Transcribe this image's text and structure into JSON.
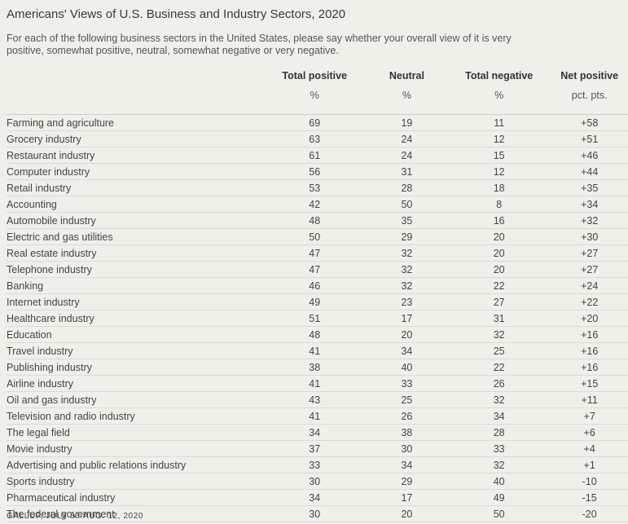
{
  "title": "Americans' Views of U.S. Business and Industry Sectors, 2020",
  "subtitle": "For each of the following business sectors in the United States, please say whether your overall view of it is very positive, somewhat positive, neutral, somewhat negative or very negative.",
  "footer": "GALLUP, JULY 30-AUG. 12, 2020",
  "chart_data": {
    "type": "table",
    "columns": [
      "Total positive",
      "Neutral",
      "Total negative",
      "Net positive"
    ],
    "units": [
      "%",
      "%",
      "%",
      "pct. pts."
    ],
    "rows": [
      {
        "label": "Farming and agriculture",
        "values": [
          "69",
          "19",
          "11",
          "+58"
        ]
      },
      {
        "label": "Grocery industry",
        "values": [
          "63",
          "24",
          "12",
          "+51"
        ]
      },
      {
        "label": "Restaurant industry",
        "values": [
          "61",
          "24",
          "15",
          "+46"
        ]
      },
      {
        "label": "Computer industry",
        "values": [
          "56",
          "31",
          "12",
          "+44"
        ]
      },
      {
        "label": "Retail industry",
        "values": [
          "53",
          "28",
          "18",
          "+35"
        ]
      },
      {
        "label": "Accounting",
        "values": [
          "42",
          "50",
          "8",
          "+34"
        ]
      },
      {
        "label": "Automobile industry",
        "values": [
          "48",
          "35",
          "16",
          "+32"
        ]
      },
      {
        "label": "Electric and gas utilities",
        "values": [
          "50",
          "29",
          "20",
          "+30"
        ]
      },
      {
        "label": "Real estate industry",
        "values": [
          "47",
          "32",
          "20",
          "+27"
        ]
      },
      {
        "label": "Telephone industry",
        "values": [
          "47",
          "32",
          "20",
          "+27"
        ]
      },
      {
        "label": "Banking",
        "values": [
          "46",
          "32",
          "22",
          "+24"
        ]
      },
      {
        "label": "Internet industry",
        "values": [
          "49",
          "23",
          "27",
          "+22"
        ]
      },
      {
        "label": "Healthcare industry",
        "values": [
          "51",
          "17",
          "31",
          "+20"
        ]
      },
      {
        "label": "Education",
        "values": [
          "48",
          "20",
          "32",
          "+16"
        ]
      },
      {
        "label": "Travel industry",
        "values": [
          "41",
          "34",
          "25",
          "+16"
        ]
      },
      {
        "label": "Publishing industry",
        "values": [
          "38",
          "40",
          "22",
          "+16"
        ]
      },
      {
        "label": "Airline industry",
        "values": [
          "41",
          "33",
          "26",
          "+15"
        ]
      },
      {
        "label": "Oil and gas industry",
        "values": [
          "43",
          "25",
          "32",
          "+11"
        ]
      },
      {
        "label": "Television and radio industry",
        "values": [
          "41",
          "26",
          "34",
          "+7"
        ]
      },
      {
        "label": "The legal field",
        "values": [
          "34",
          "38",
          "28",
          "+6"
        ]
      },
      {
        "label": "Movie industry",
        "values": [
          "37",
          "30",
          "33",
          "+4"
        ]
      },
      {
        "label": "Advertising and public relations industry",
        "values": [
          "33",
          "34",
          "32",
          "+1"
        ]
      },
      {
        "label": "Sports industry",
        "values": [
          "30",
          "29",
          "40",
          "-10"
        ]
      },
      {
        "label": "Pharmaceutical industry",
        "values": [
          "34",
          "17",
          "49",
          "-15"
        ]
      },
      {
        "label": "The federal government",
        "values": [
          "30",
          "20",
          "50",
          "-20"
        ]
      }
    ]
  }
}
